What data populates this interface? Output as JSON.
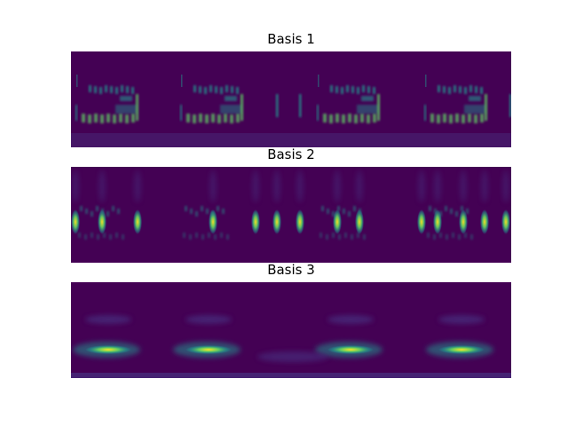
{
  "chart_data": [
    {
      "type": "heatmap",
      "title": "Basis 1",
      "colormap": "viridis",
      "xlabel": "",
      "ylabel": "",
      "axes_visible": false,
      "description_values": {
        "repeating_segments": 4,
        "pattern": "stacked horizontal harmonic streaks with vertical transients"
      }
    },
    {
      "type": "heatmap",
      "title": "Basis 2",
      "colormap": "viridis",
      "xlabel": "",
      "ylabel": "",
      "axes_visible": false,
      "description_values": {
        "repeating_segments": 4,
        "pattern": "narrow bright vertical blobs around mid-frequency"
      }
    },
    {
      "type": "heatmap",
      "title": "Basis 3",
      "colormap": "viridis",
      "xlabel": "",
      "ylabel": "",
      "axes_visible": false,
      "description_values": {
        "repeating_segments": 4,
        "pattern": "broad bright horizontal band near lower third with faint upper band"
      }
    }
  ],
  "colors": {
    "background": "#440154",
    "low": "#472c7a",
    "mid": "#21918c",
    "high": "#5ec962",
    "peak": "#fde725"
  }
}
